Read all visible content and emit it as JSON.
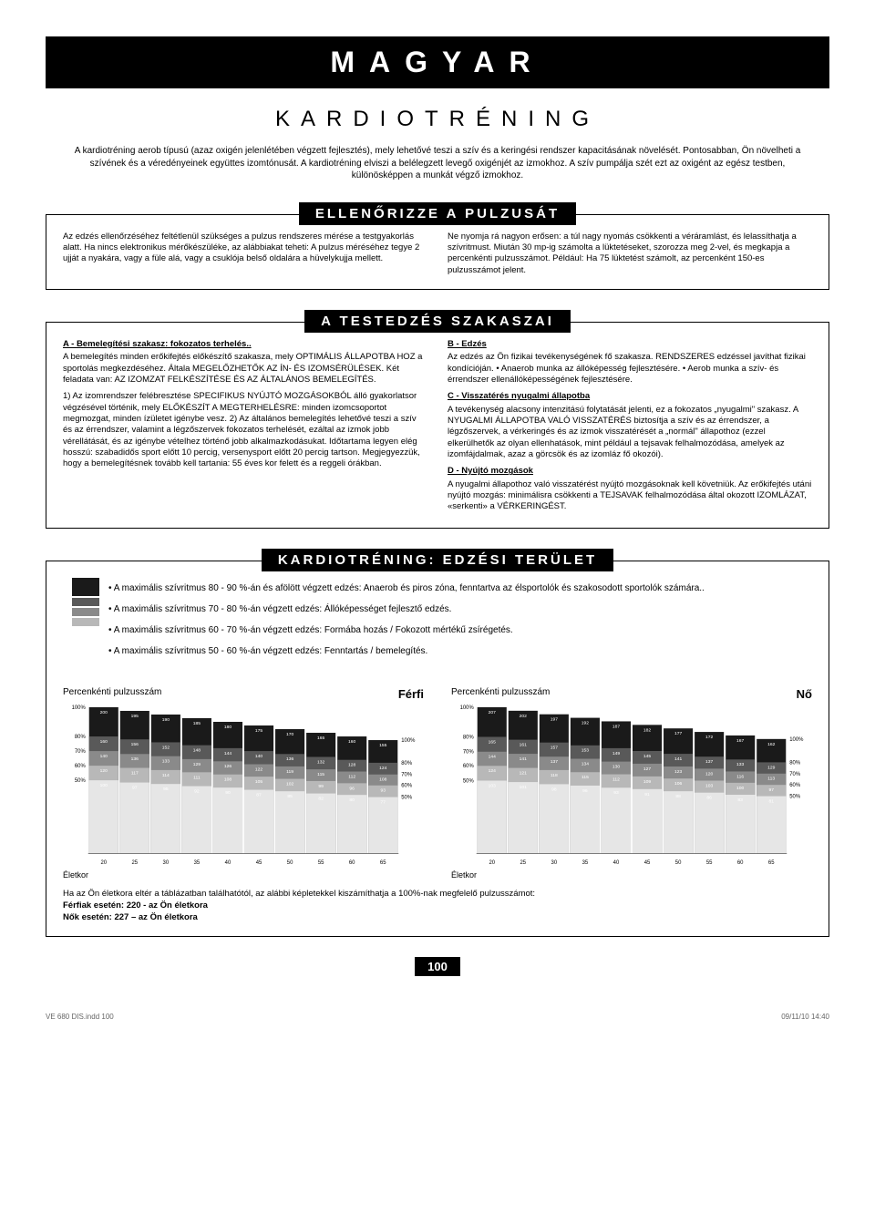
{
  "header": {
    "title": "MAGYAR",
    "subtitle": "KARDIOTRÉNING"
  },
  "intro": "A kardiotréning aerob típusú (azaz oxigén jelenlétében végzett fejlesztés),\nmely lehetővé teszi a szív és a keringési rendszer kapacitásának növelését. Pontosabban, Ön növelheti a szívének és a véredényeinek együttes izomtónusát. A kardiotréning elviszi a belélegzett levegő oxigénjét az izmokhoz.\nA szív pumpálja szét ezt az oxigént az egész testben, különösképpen a munkát végző izmokhoz.",
  "section1": {
    "title": "ELLENŐRIZZE A PULZUSÁT",
    "left": "Az edzés ellenőrzéséhez feltétlenül szükséges a pulzus rendszeres mérése a testgyakorlás alatt.\nHa nincs elektronikus mérőkészüléke, az alábbiakat teheti:\nA pulzus méréséhez tegye 2 ujját\na nyakára, vagy a füle alá, vagy a csuklója belső oldalára a hüvelykujja mellett.",
    "right": "Ne nyomja rá nagyon erősen:\na túl nagy nyomás csökkenti a véráramlást, és lelassíthatja a szívritmust.\nMiután 30 mp-ig számolta a lüktetéseket, szorozza meg 2-vel, és megkapja a percenkénti pulzusszámot.\nPéldául:\nHa 75 lüktetést számolt, az percenként 150-es pulzusszámot jelent."
  },
  "section2": {
    "title": "A TESTEDZÉS SZAKASZAI",
    "left_hd": "A - Bemelegítési szakasz: fokozatos terhelés..",
    "left_p1": "A bemelegítés minden erőkifejtés előkészítő szakasza, mely OPTIMÁLIS ÁLLAPOTBA HOZ a sportolás megkezdéséhez. Általa MEGELŐZHETŐK AZ ÍN- ÉS IZOMSÉRÜLÉSEK. Két feladata van:\nAZ IZOMZAT FELKÉSZÍTÉSE ÉS AZ ÁLTALÁNOS BEMELEGÍTÉS.",
    "left_p2": "1) Az izomrendszer felébresztése SPECIFIKUS NYÚJTÓ MOZGÁSOKBÓL álló gyakorlatsor végzésével történik, mely ELŐKÉSZÍT A MEGTERHELÉSRE: minden izomcsoportot megmozgat, minden ízületet igénybe vesz.\n2) Az általános bemelegítés lehetővé teszi a szív és az érrendszer, valamint a légzőszervek fokozatos terhelését, ezáltal az izmok jobb vérellátását, és az igénybe vételhez történő jobb alkalmazkodásukat. Időtartama legyen elég hosszú: szabadidős sport előtt 10 percig, versenysport előtt 20 percig tartson. Megjegyezzük, hogy a bemelegítésnek tovább kell tartania: 55 éves kor felett és a reggeli órákban.",
    "right_b_hd": "B - Edzés",
    "right_b": "Az edzés az Ön fizikai tevékenységének fő szakasza.\nRENDSZERES edzéssel javíthat fizikai kondícióján.\n• Anaerob munka az állóképesség fejlesztésére.\n• Aerob munka a szív- és érrendszer ellenállóképességének fejlesztésére.",
    "right_c_hd": "C - Visszatérés nyugalmi állapotba",
    "right_c": "A tevékenység alacsony intenzitású folytatását jelenti, ez a fokozatos „nyugalmi\" szakasz. A NYUGALMI ÁLLAPOTBA VALÓ VISSZATÉRÉS biztosítja a szív és az érrendszer, a légzőszervek, a vérkeringés és az izmok visszatérését a „normál\" állapothoz (ezzel elkerülhetők az olyan ellenhatások, mint például a tejsavak felhalmozódása, amelyek az izomfájdalmak, azaz a görcsök és az izomláz fő okozói).",
    "right_d_hd": "D - Nyújtó mozgások",
    "right_d": "A nyugalmi állapothoz való visszatérést nyújtó mozgásoknak kell követniük. Az erőkifejtés utáni nyújtó mozgás: minimálisra csökkenti a TEJSAVAK felhalmozódása által okozott IZOMLÁZAT, «serkenti» a VÉRKERINGÉST."
  },
  "section3": {
    "title": "KARDIOTRÉNING: EDZÉSI TERÜLET",
    "zones": [
      {
        "color": "#1a1a1a",
        "text": "A maximális szívritmus 80 - 90 %-án és afölött végzett edzés: Anaerob és piros zóna, fenntartva az élsportolók és szakosodott sportolók számára.."
      },
      {
        "color": "#595959",
        "text": "A maximális szívritmus 70 - 80 %-án végzett edzés: Állóképességet fejlesztő edzés."
      },
      {
        "color": "#8a8a8a",
        "text": "A maximális szívritmus 60 - 70 %-án végzett edzés: Formába hozás / Fokozott mértékű zsírégetés."
      },
      {
        "color": "#b8b8b8",
        "text": "A maximális szívritmus 50 - 60 %-án végzett edzés: Fenntartás / bemelegítés."
      }
    ],
    "chart_label": "Percenkénti pulzusszám",
    "male_label": "Férfi",
    "female_label": "Nő",
    "age_label": "Életkor",
    "ages": [
      20,
      25,
      30,
      35,
      40,
      45,
      50,
      55,
      60,
      65
    ],
    "y_ticks": [
      "100%",
      "80%",
      "70%",
      "60%",
      "50%"
    ],
    "male": {
      "v100": [
        200,
        195,
        190,
        185,
        180,
        175,
        170,
        165,
        160,
        155
      ],
      "v80": [
        160,
        156,
        152,
        148,
        144,
        140,
        136,
        132,
        128,
        124
      ],
      "v70": [
        140,
        136,
        133,
        129,
        126,
        122,
        119,
        115,
        112,
        108
      ],
      "v60": [
        120,
        117,
        114,
        111,
        108,
        105,
        102,
        99,
        96,
        93
      ],
      "v50": [
        100,
        97,
        95,
        92,
        90,
        87,
        85,
        82,
        80,
        77
      ]
    },
    "female": {
      "v100": [
        207,
        202,
        197,
        192,
        187,
        182,
        177,
        172,
        167,
        162
      ],
      "v80": [
        165,
        161,
        157,
        153,
        149,
        145,
        141,
        137,
        133,
        129
      ],
      "v70": [
        144,
        141,
        137,
        134,
        130,
        127,
        123,
        120,
        116,
        113
      ],
      "v60": [
        124,
        121,
        118,
        115,
        112,
        109,
        106,
        103,
        100,
        97
      ],
      "v50": [
        103,
        101,
        98,
        96,
        93,
        91,
        88,
        86,
        83,
        81
      ]
    },
    "colors": {
      "b100": "#1a1a1a",
      "b80": "#595959",
      "b70": "#8a8a8a",
      "b60": "#b8b8b8",
      "b50": "#e6e6e6"
    },
    "formula": "Ha az Ön életkora eltér a táblázatban találhatótól, az alábbi képletekkel kiszámíthatja a 100%-nak megfelelő pulzusszámot:",
    "formula_m": "Férfiak esetén: 220 - az Ön életkora",
    "formula_f": "Nők esetén: 227 – az Ön életkora"
  },
  "page_number": "100",
  "footer": {
    "left": "VE 680 DIS.indd   100",
    "right": "09/11/10   14:40"
  }
}
